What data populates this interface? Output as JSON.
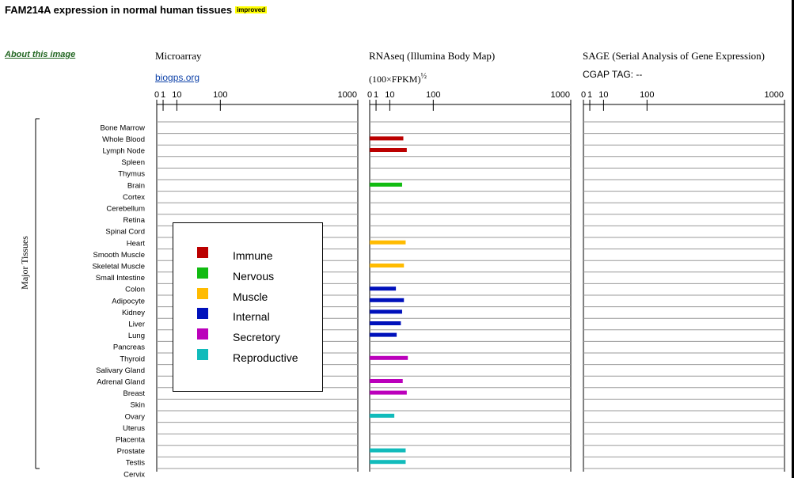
{
  "header": {
    "title": "FAM214A expression in normal human tissues",
    "badge": "improved",
    "about_link": "About this image"
  },
  "panels": {
    "microarray": {
      "title": "Microarray",
      "link": "biogps.org"
    },
    "rnaseq": {
      "title": "RNAseq (Illumina Body Map)",
      "unit": "(100×FPKM)",
      "unit_sup": "½"
    },
    "sage": {
      "title": "SAGE (Serial Analysis of Gene Expression)",
      "subtitle": "CGAP TAG: --"
    }
  },
  "chart_data": {
    "type": "bar",
    "orientation": "horizontal",
    "ylabel": "Major Tissues",
    "axis_scale": "sqrt",
    "axis_range": [
      0,
      1000
    ],
    "ticks": [
      0,
      1,
      10,
      100,
      1000
    ],
    "categories": [
      "Bone Marrow",
      "Whole Blood",
      "Lymph Node",
      "Spleen",
      "Thymus",
      "Brain",
      "Cortex",
      "Cerebellum",
      "Retina",
      "Spinal Cord",
      "Heart",
      "Smooth Muscle",
      "Skeletal Muscle",
      "Small Intestine",
      "Colon",
      "Adipocyte",
      "Kidney",
      "Liver",
      "Lung",
      "Pancreas",
      "Thyroid",
      "Salivary Gland",
      "Adrenal Gland",
      "Breast",
      "Skin",
      "Ovary",
      "Uterus",
      "Placenta",
      "Prostate",
      "Testis",
      "Cervix"
    ],
    "groups": [
      "Immune",
      "Immune",
      "Immune",
      "Immune",
      "Immune",
      "Nervous",
      "Nervous",
      "Nervous",
      "Nervous",
      "Nervous",
      "Muscle",
      "Muscle",
      "Muscle",
      "Internal",
      "Internal",
      "Internal",
      "Internal",
      "Internal",
      "Internal",
      "Internal",
      "Secretory",
      "Secretory",
      "Secretory",
      "Secretory",
      "Secretory",
      "Reproductive",
      "Reproductive",
      "Reproductive",
      "Reproductive",
      "Reproductive",
      "Reproductive"
    ],
    "group_colors": {
      "Immune": "#bb0000",
      "Nervous": "#11bb11",
      "Muscle": "#ffbb00",
      "Internal": "#0011bb",
      "Secretory": "#bb00bb",
      "Reproductive": "#11bbbb"
    },
    "legend": [
      "Immune",
      "Nervous",
      "Muscle",
      "Internal",
      "Secretory",
      "Reproductive"
    ],
    "legend_position": "inside-left",
    "series": [
      {
        "panel": "Microarray",
        "values": [
          null,
          null,
          null,
          null,
          null,
          null,
          null,
          null,
          null,
          null,
          null,
          null,
          null,
          null,
          null,
          null,
          null,
          null,
          null,
          null,
          null,
          null,
          null,
          null,
          null,
          null,
          null,
          null,
          null,
          null,
          null
        ]
      },
      {
        "panel": "RNAseq",
        "values": [
          null,
          28,
          34,
          null,
          null,
          26,
          null,
          null,
          null,
          null,
          32,
          null,
          29,
          null,
          17,
          29,
          26,
          24,
          18,
          null,
          36,
          null,
          27,
          34,
          null,
          15,
          null,
          null,
          32,
          32,
          null
        ]
      },
      {
        "panel": "SAGE",
        "values": [
          null,
          null,
          null,
          null,
          null,
          null,
          null,
          null,
          null,
          null,
          null,
          null,
          null,
          null,
          null,
          null,
          null,
          null,
          null,
          null,
          null,
          null,
          null,
          null,
          null,
          null,
          null,
          null,
          null,
          null,
          null
        ]
      }
    ]
  }
}
